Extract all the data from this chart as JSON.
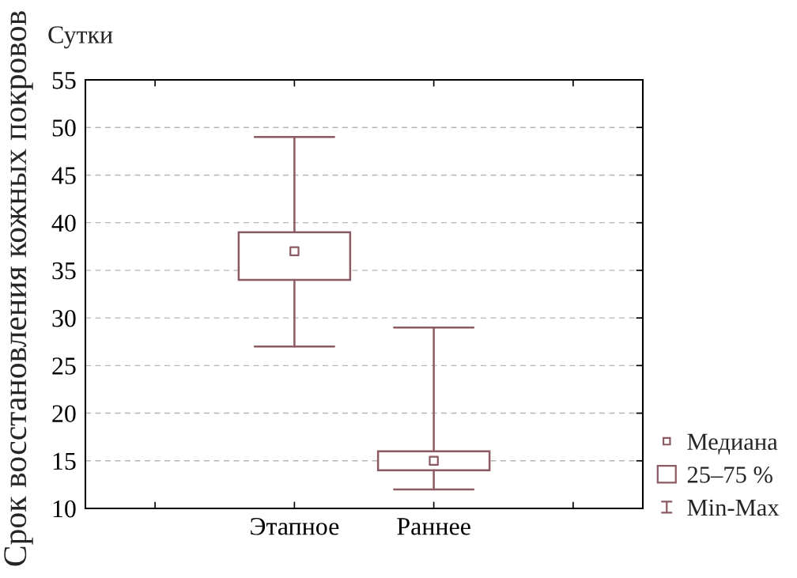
{
  "chart_data": {
    "type": "box",
    "categories": [
      null,
      "Этапное",
      "Раннее",
      null
    ],
    "ylabel": "Срок восстановления кожных покровов",
    "annotations": [
      "Сутки",
      "Медиана",
      "25–75 %",
      "Min-Max"
    ],
    "color": "#8c5a62",
    "marker": "square",
    "boxes": [
      null,
      {
        "low": 27,
        "q1": 34,
        "median": 37,
        "q3": 39,
        "high": 49
      },
      {
        "low": 12,
        "q1": 14,
        "median": 15,
        "q3": 16,
        "high": 29
      },
      null
    ],
    "ylim": [
      10,
      55
    ],
    "yticks": [
      10,
      15,
      20,
      25,
      30,
      35,
      40,
      45,
      50,
      55
    ],
    "grid": "y"
  }
}
